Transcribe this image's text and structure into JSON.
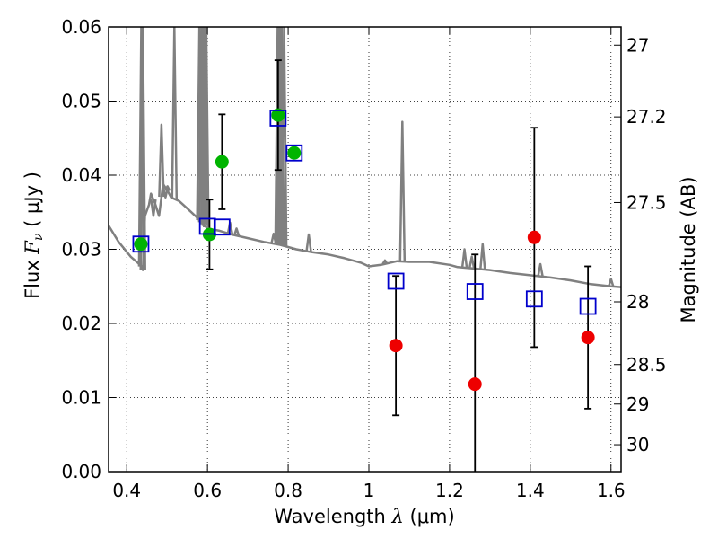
{
  "chart_data": {
    "type": "scatter",
    "title": "",
    "xlabel": {
      "prefix": "Wavelength  ",
      "sym": "λ",
      "unit": " (μm)"
    },
    "ylabel": {
      "prefix": "Flux  ",
      "sym": "F",
      "sub": "ν",
      "unit": "  ( μJy )"
    },
    "y2label": "Magnitude (AB)",
    "xlim": [
      0.355,
      1.625
    ],
    "ylim": [
      0.0,
      0.06
    ],
    "grid": true,
    "xticks": [
      {
        "v": 0.4,
        "label": "0.4"
      },
      {
        "v": 0.6,
        "label": "0.6"
      },
      {
        "v": 0.8,
        "label": "0.8"
      },
      {
        "v": 1.0,
        "label": "1"
      },
      {
        "v": 1.2,
        "label": "1.2"
      },
      {
        "v": 1.4,
        "label": "1.4"
      },
      {
        "v": 1.6,
        "label": "1.6"
      }
    ],
    "yticks": [
      {
        "v": 0.0,
        "label": "0.00"
      },
      {
        "v": 0.01,
        "label": "0.01"
      },
      {
        "v": 0.02,
        "label": "0.02"
      },
      {
        "v": 0.03,
        "label": "0.03"
      },
      {
        "v": 0.04,
        "label": "0.04"
      },
      {
        "v": 0.05,
        "label": "0.05"
      },
      {
        "v": 0.06,
        "label": "0.06"
      }
    ],
    "mag_ticks": [
      {
        "mag": 27,
        "label": "27"
      },
      {
        "mag": 27.2,
        "label": "27.2"
      },
      {
        "mag": 27.5,
        "label": "27.5"
      },
      {
        "mag": 28,
        "label": "28"
      },
      {
        "mag": 28.5,
        "label": "28.5"
      },
      {
        "mag": 29,
        "label": "29"
      },
      {
        "mag": 30,
        "label": "30"
      }
    ],
    "series": [
      {
        "kind": "spectrum",
        "color": "#808080",
        "continuum": [
          [
            0.355,
            0.0332
          ],
          [
            0.38,
            0.031
          ],
          [
            0.41,
            0.029
          ],
          [
            0.435,
            0.0278
          ],
          [
            0.44,
            0.0272
          ],
          [
            0.445,
            0.0345
          ],
          [
            0.455,
            0.036
          ],
          [
            0.46,
            0.0375
          ],
          [
            0.47,
            0.0362
          ],
          [
            0.48,
            0.0345
          ],
          [
            0.49,
            0.0388
          ],
          [
            0.5,
            0.038
          ],
          [
            0.51,
            0.037
          ],
          [
            0.53,
            0.0365
          ],
          [
            0.55,
            0.0355
          ],
          [
            0.57,
            0.0345
          ],
          [
            0.6,
            0.0328
          ],
          [
            0.63,
            0.0325
          ],
          [
            0.66,
            0.032
          ],
          [
            0.7,
            0.0315
          ],
          [
            0.74,
            0.031
          ],
          [
            0.78,
            0.0306
          ],
          [
            0.82,
            0.03
          ],
          [
            0.86,
            0.0296
          ],
          [
            0.9,
            0.0293
          ],
          [
            0.94,
            0.0288
          ],
          [
            0.98,
            0.0282
          ],
          [
            1.0,
            0.0277
          ],
          [
            1.03,
            0.0279
          ],
          [
            1.07,
            0.0284
          ],
          [
            1.1,
            0.0283
          ],
          [
            1.15,
            0.0283
          ],
          [
            1.2,
            0.0279
          ],
          [
            1.22,
            0.0276
          ],
          [
            1.26,
            0.0274
          ],
          [
            1.3,
            0.0272
          ],
          [
            1.35,
            0.0268
          ],
          [
            1.4,
            0.0265
          ],
          [
            1.45,
            0.0262
          ],
          [
            1.5,
            0.0258
          ],
          [
            1.55,
            0.0253
          ],
          [
            1.6,
            0.025
          ],
          [
            1.625,
            0.0249
          ]
        ],
        "lines": [
          [
            0.436,
            0.06
          ],
          [
            0.44,
            0.06
          ],
          [
            0.466,
            0.0345
          ],
          [
            0.486,
            0.0468
          ],
          [
            0.496,
            0.037
          ],
          [
            0.501,
            0.0385
          ],
          [
            0.518,
            0.06
          ],
          [
            0.58,
            0.06
          ],
          [
            0.585,
            0.06
          ],
          [
            0.59,
            0.06
          ],
          [
            0.594,
            0.06
          ],
          [
            0.597,
            0.06
          ],
          [
            0.656,
            0.0336
          ],
          [
            0.672,
            0.0328
          ],
          [
            0.764,
            0.0321
          ],
          [
            0.774,
            0.06
          ],
          [
            0.776,
            0.06
          ],
          [
            0.78,
            0.06
          ],
          [
            0.784,
            0.06
          ],
          [
            0.79,
            0.06
          ],
          [
            0.851,
            0.032
          ],
          [
            1.04,
            0.0285
          ],
          [
            1.083,
            0.0472
          ],
          [
            1.237,
            0.03
          ],
          [
            1.255,
            0.029
          ],
          [
            1.282,
            0.0307
          ],
          [
            1.425,
            0.028
          ],
          [
            1.6,
            0.026
          ]
        ]
      },
      {
        "kind": "model",
        "marker": "square-open",
        "color": "#0000cc",
        "points": [
          [
            0.435,
            0.0307
          ],
          [
            0.6,
            0.0331
          ],
          [
            0.636,
            0.033
          ],
          [
            0.775,
            0.0477
          ],
          [
            0.815,
            0.043
          ],
          [
            1.067,
            0.0257
          ],
          [
            1.263,
            0.0243
          ],
          [
            1.41,
            0.0233
          ],
          [
            1.543,
            0.0223
          ]
        ]
      },
      {
        "kind": "detections",
        "marker": "circle-filled",
        "color": "#00b400",
        "points": [
          {
            "x": 0.435,
            "y": 0.0307
          },
          {
            "x": 0.605,
            "y": 0.032,
            "err": 0.0047
          },
          {
            "x": 0.636,
            "y": 0.0418,
            "err": 0.0064
          },
          {
            "x": 0.775,
            "y": 0.0481,
            "err": 0.0074
          },
          {
            "x": 0.815,
            "y": 0.043
          }
        ]
      },
      {
        "kind": "nir",
        "marker": "circle-filled",
        "color": "#ee0000",
        "points": [
          {
            "x": 1.067,
            "y": 0.017,
            "err": 0.0094
          },
          {
            "x": 1.263,
            "y": 0.0118,
            "err": 0.0175
          },
          {
            "x": 1.41,
            "y": 0.0316,
            "err": 0.0148
          },
          {
            "x": 1.543,
            "y": 0.0181,
            "err": 0.0096
          }
        ]
      }
    ]
  }
}
